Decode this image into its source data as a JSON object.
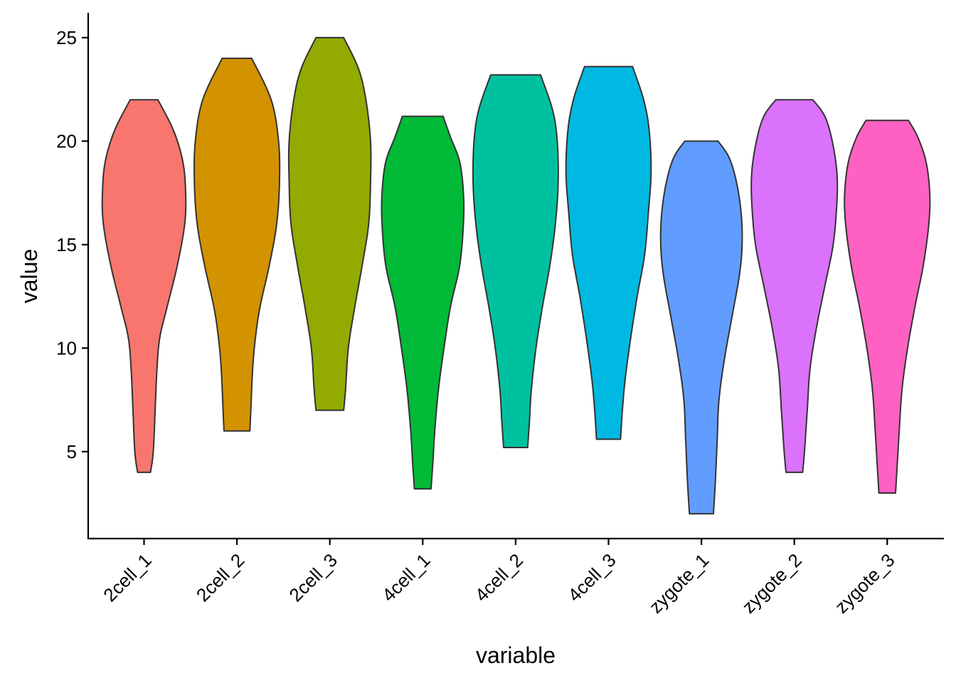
{
  "chart_data": {
    "type": "violin",
    "title": "",
    "xlabel": "variable",
    "ylabel": "value",
    "ylim": [
      0.8,
      26.2
    ],
    "yticks": [
      5,
      10,
      15,
      20,
      25
    ],
    "ytick_labels": [
      "5",
      "10",
      "15",
      "20",
      "25"
    ],
    "grid": false,
    "legend": "none",
    "categories": [
      "2cell_1",
      "2cell_2",
      "2cell_3",
      "4cell_1",
      "4cell_2",
      "4cell_3",
      "zygote_1",
      "zygote_2",
      "zygote_3"
    ],
    "series": [
      {
        "category": "2cell_1",
        "color": "#F8766D",
        "min": 4.0,
        "max": 22.0,
        "profile": [
          [
            4.0,
            0.07
          ],
          [
            5.0,
            0.1
          ],
          [
            7.0,
            0.12
          ],
          [
            9.0,
            0.14
          ],
          [
            10.5,
            0.17
          ],
          [
            12.0,
            0.25
          ],
          [
            14.0,
            0.36
          ],
          [
            16.0,
            0.44
          ],
          [
            17.5,
            0.45
          ],
          [
            19.0,
            0.42
          ],
          [
            20.5,
            0.32
          ],
          [
            22.0,
            0.15
          ]
        ]
      },
      {
        "category": "2cell_2",
        "color": "#D39200",
        "min": 6.0,
        "max": 24.0,
        "profile": [
          [
            6.0,
            0.14
          ],
          [
            7.0,
            0.15
          ],
          [
            9.0,
            0.17
          ],
          [
            10.5,
            0.2
          ],
          [
            12.0,
            0.25
          ],
          [
            14.0,
            0.35
          ],
          [
            16.0,
            0.43
          ],
          [
            18.0,
            0.46
          ],
          [
            20.0,
            0.45
          ],
          [
            22.0,
            0.37
          ],
          [
            24.0,
            0.16
          ]
        ]
      },
      {
        "category": "2cell_3",
        "color": "#93AA00",
        "min": 7.0,
        "max": 25.0,
        "profile": [
          [
            7.0,
            0.15
          ],
          [
            8.0,
            0.17
          ],
          [
            10.0,
            0.2
          ],
          [
            12.0,
            0.27
          ],
          [
            14.0,
            0.35
          ],
          [
            16.0,
            0.42
          ],
          [
            18.0,
            0.44
          ],
          [
            20.0,
            0.44
          ],
          [
            22.0,
            0.39
          ],
          [
            23.5,
            0.31
          ],
          [
            25.0,
            0.15
          ]
        ]
      },
      {
        "category": "4cell_1",
        "color": "#00BA38",
        "min": 3.2,
        "max": 21.2,
        "profile": [
          [
            3.2,
            0.09
          ],
          [
            4.5,
            0.11
          ],
          [
            6.0,
            0.13
          ],
          [
            8.0,
            0.17
          ],
          [
            10.0,
            0.23
          ],
          [
            12.0,
            0.3
          ],
          [
            14.0,
            0.4
          ],
          [
            16.0,
            0.44
          ],
          [
            17.5,
            0.44
          ],
          [
            19.0,
            0.4
          ],
          [
            20.2,
            0.3
          ],
          [
            21.2,
            0.22
          ]
        ]
      },
      {
        "category": "4cell_2",
        "color": "#00C19F",
        "min": 5.2,
        "max": 23.2,
        "profile": [
          [
            5.2,
            0.13
          ],
          [
            6.5,
            0.15
          ],
          [
            8.0,
            0.17
          ],
          [
            10.0,
            0.22
          ],
          [
            12.0,
            0.29
          ],
          [
            14.0,
            0.37
          ],
          [
            16.0,
            0.43
          ],
          [
            18.0,
            0.46
          ],
          [
            20.0,
            0.45
          ],
          [
            21.5,
            0.4
          ],
          [
            23.2,
            0.27
          ]
        ]
      },
      {
        "category": "4cell_3",
        "color": "#00B9E3",
        "min": 5.6,
        "max": 23.6,
        "profile": [
          [
            5.6,
            0.13
          ],
          [
            7.0,
            0.15
          ],
          [
            8.5,
            0.18
          ],
          [
            10.5,
            0.24
          ],
          [
            12.5,
            0.31
          ],
          [
            14.5,
            0.39
          ],
          [
            16.5,
            0.43
          ],
          [
            18.5,
            0.46
          ],
          [
            20.5,
            0.44
          ],
          [
            22.0,
            0.38
          ],
          [
            23.6,
            0.26
          ]
        ]
      },
      {
        "category": "zygote_1",
        "color": "#619CFF",
        "min": 2.0,
        "max": 20.0,
        "profile": [
          [
            2.0,
            0.13
          ],
          [
            3.5,
            0.15
          ],
          [
            5.5,
            0.17
          ],
          [
            7.5,
            0.19
          ],
          [
            9.5,
            0.25
          ],
          [
            11.5,
            0.33
          ],
          [
            13.5,
            0.41
          ],
          [
            15.0,
            0.44
          ],
          [
            16.5,
            0.43
          ],
          [
            18.0,
            0.38
          ],
          [
            19.2,
            0.3
          ],
          [
            20.0,
            0.18
          ]
        ]
      },
      {
        "category": "zygote_2",
        "color": "#DB72FB",
        "min": 4.0,
        "max": 22.0,
        "profile": [
          [
            4.0,
            0.09
          ],
          [
            5.0,
            0.11
          ],
          [
            7.0,
            0.14
          ],
          [
            9.0,
            0.17
          ],
          [
            11.0,
            0.24
          ],
          [
            13.0,
            0.33
          ],
          [
            15.0,
            0.42
          ],
          [
            17.0,
            0.46
          ],
          [
            18.5,
            0.46
          ],
          [
            20.0,
            0.41
          ],
          [
            21.2,
            0.33
          ],
          [
            22.0,
            0.2
          ]
        ]
      },
      {
        "category": "zygote_3",
        "color": "#FF61C3",
        "min": 3.0,
        "max": 21.0,
        "profile": [
          [
            3.0,
            0.09
          ],
          [
            4.5,
            0.11
          ],
          [
            6.0,
            0.13
          ],
          [
            8.0,
            0.16
          ],
          [
            10.0,
            0.22
          ],
          [
            12.0,
            0.3
          ],
          [
            14.0,
            0.39
          ],
          [
            16.0,
            0.45
          ],
          [
            17.5,
            0.46
          ],
          [
            19.0,
            0.42
          ],
          [
            20.2,
            0.33
          ],
          [
            21.0,
            0.23
          ]
        ]
      }
    ]
  }
}
